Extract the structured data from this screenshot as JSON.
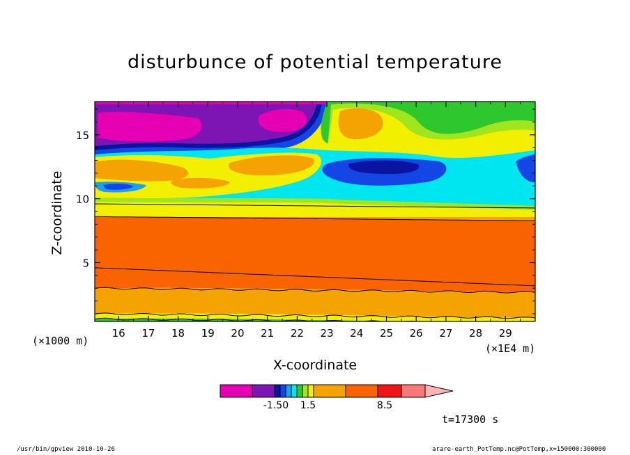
{
  "chart_data": {
    "type": "heatmap",
    "title": "disturbunce of potential temperature",
    "xlabel": "X-coordinate",
    "ylabel": "Z-coordinate",
    "x_unit": "(×1E4 m)",
    "y_unit": "(×1000 m)",
    "xlim": [
      15.2,
      30.0
    ],
    "ylim": [
      0.4,
      17.6
    ],
    "x_ticks": [
      "16",
      "17",
      "18",
      "19",
      "20",
      "21",
      "22",
      "23",
      "24",
      "25",
      "26",
      "27",
      "28",
      "29"
    ],
    "y_ticks": [
      "5",
      "10",
      "15"
    ],
    "colorbar_labels": [
      "-1.50",
      "1.5",
      "8.5"
    ],
    "time_label": "t=17300 s",
    "layers": [
      {
        "z0": 9.5,
        "z1": 17.6,
        "color": "#f2f000"
      },
      {
        "z0": 8.6,
        "z1": 9.7,
        "color": "#f5a300"
      },
      {
        "z0": 3.0,
        "z1": 8.6,
        "color": "#fa6400"
      },
      {
        "z0": 1.0,
        "z1": 3.0,
        "color": "#f5a300"
      },
      {
        "z0": 0.6,
        "z1": 1.0,
        "color": "#f2f000"
      },
      {
        "z0": 0.4,
        "z1": 0.6,
        "color": "#2ec82e"
      }
    ]
  },
  "colorbar_colors": [
    "#e600b4",
    "#7d14b4",
    "#0a14a0",
    "#1446e6",
    "#1ea0f0",
    "#00e6f0",
    "#2ec82e",
    "#a0e61e",
    "#f2f000",
    "#f5a300",
    "#fa6400",
    "#f01414",
    "#fa7878",
    "#ffb4b4"
  ],
  "footer": {
    "left": "/usr/bin/gpview  2010-10-26",
    "right": "arare-earth_PotTemp.nc@PotTemp,x=150000:300000"
  }
}
